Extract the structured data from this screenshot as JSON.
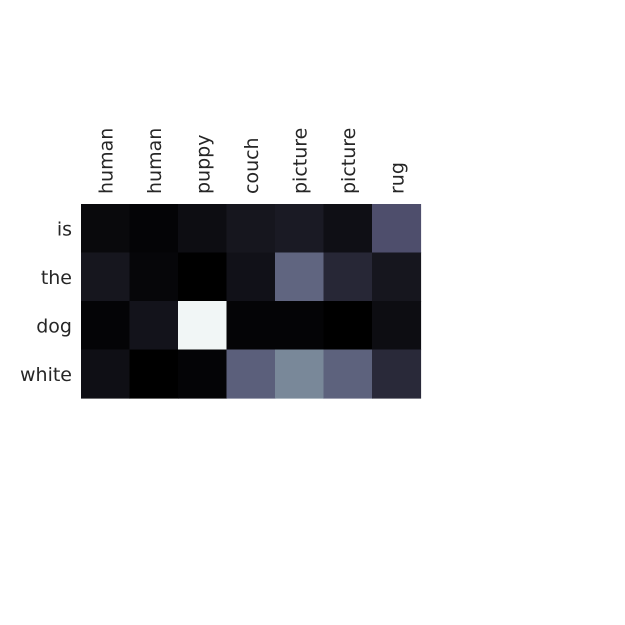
{
  "chart_data": {
    "type": "heatmap",
    "x": [
      "human",
      "human",
      "puppy",
      "couch",
      "picture",
      "picture",
      "rug"
    ],
    "y": [
      "is",
      "the",
      "dog",
      "white"
    ],
    "z": [
      [
        0.04,
        0.02,
        0.06,
        0.1,
        0.12,
        0.07,
        0.36
      ],
      [
        0.1,
        0.03,
        0.0,
        0.08,
        0.44,
        0.18,
        0.1
      ],
      [
        0.02,
        0.09,
        0.96,
        0.02,
        0.02,
        0.0,
        0.06
      ],
      [
        0.07,
        0.0,
        0.02,
        0.42,
        0.55,
        0.43,
        0.19
      ]
    ],
    "colormap": "bone",
    "colorbar": false
  }
}
